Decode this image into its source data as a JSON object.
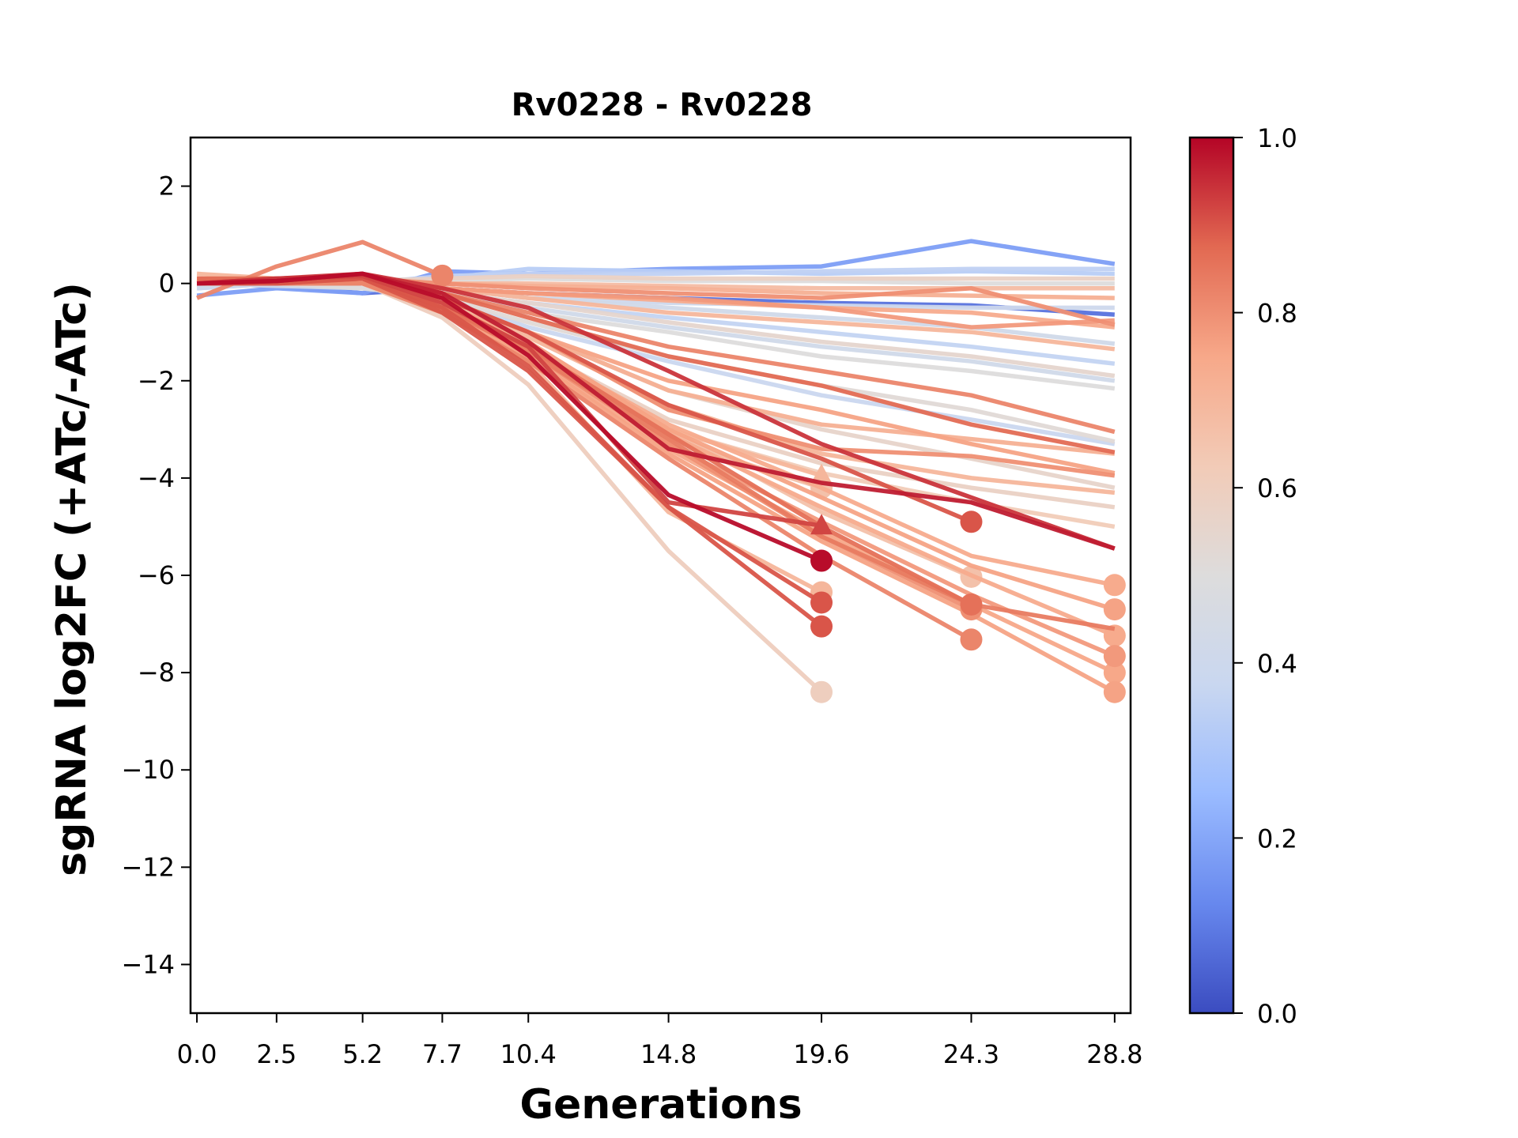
{
  "chart_data": {
    "type": "line",
    "title": "Rv0228 - Rv0228",
    "xlabel": "Generations",
    "ylabel": "sgRNA log2FC (+ATc/-ATc)",
    "x": [
      0.0,
      2.5,
      5.2,
      7.7,
      10.4,
      14.8,
      19.6,
      24.3,
      28.8
    ],
    "x_tick_labels": [
      "0.0",
      "2.5",
      "5.2",
      "7.7",
      "10.4",
      "14.8",
      "19.6",
      "24.3",
      "28.8"
    ],
    "xlim": [
      -0.2,
      29.3
    ],
    "ylim": [
      -15,
      3
    ],
    "y_ticks": [
      2,
      0,
      -2,
      -4,
      -6,
      -8,
      -10,
      -12,
      -14
    ],
    "y_tick_labels": [
      "2",
      "0",
      "−2",
      "−4",
      "−6",
      "−8",
      "−10",
      "−12",
      "−14"
    ],
    "grid": false,
    "colormap": "coolwarm",
    "colorbar": {
      "range": [
        0.0,
        1.0
      ],
      "ticks": [
        0.0,
        0.2,
        0.4,
        0.6,
        0.8,
        1.0
      ],
      "tick_labels": [
        "0.0",
        "0.2",
        "0.4",
        "0.6",
        "0.8",
        "1.0"
      ],
      "stops": [
        "#3b4cc0",
        "#6788ee",
        "#9abbff",
        "#c9d7f0",
        "#dddcdc",
        "#f2cbb7",
        "#f7a889",
        "#e26952",
        "#b40426"
      ]
    },
    "series": [
      {
        "color_value": 0.18,
        "values": [
          -0.25,
          -0.1,
          -0.2,
          0.25,
          0.2,
          0.3,
          0.35,
          0.87,
          0.4
        ]
      },
      {
        "color_value": 0.35,
        "values": [
          0.0,
          0.05,
          0.0,
          0.15,
          0.2,
          0.2,
          0.25,
          0.3,
          0.3
        ]
      },
      {
        "color_value": 0.33,
        "values": [
          -0.1,
          0.0,
          0.05,
          0.1,
          0.3,
          0.25,
          0.2,
          0.25,
          0.2
        ]
      },
      {
        "color_value": 0.58,
        "values": [
          0.05,
          0.0,
          0.05,
          0.1,
          0.15,
          0.1,
          0.1,
          0.1,
          0.1
        ]
      },
      {
        "color_value": 0.5,
        "values": [
          0.0,
          0.1,
          0.0,
          0.05,
          0.1,
          0.05,
          0.05,
          0.0,
          0.0
        ]
      },
      {
        "color_value": 0.68,
        "values": [
          0.1,
          0.0,
          0.0,
          0.0,
          0.0,
          -0.05,
          -0.1,
          -0.1,
          -0.1
        ]
      },
      {
        "color_value": 0.8,
        "values": [
          0.05,
          0.05,
          0.1,
          0.0,
          -0.1,
          -0.2,
          -0.3,
          -0.1,
          -0.85
        ]
      },
      {
        "color_value": 0.72,
        "values": [
          0.0,
          0.0,
          0.05,
          0.0,
          -0.05,
          -0.1,
          -0.2,
          -0.25,
          -0.3
        ]
      },
      {
        "color_value": 0.4,
        "values": [
          -0.1,
          0.0,
          -0.1,
          -0.1,
          -0.3,
          -0.4,
          -0.45,
          -0.5,
          -0.5
        ]
      },
      {
        "color_value": 0.08,
        "values": [
          0.0,
          -0.05,
          -0.2,
          -0.1,
          -0.2,
          -0.3,
          -0.4,
          -0.45,
          -0.64
        ]
      },
      {
        "color_value": 0.78,
        "values": [
          0.1,
          0.0,
          0.0,
          -0.1,
          -0.2,
          -0.3,
          -0.5,
          -0.9,
          -0.76
        ]
      },
      {
        "color_value": 0.74,
        "values": [
          0.0,
          0.1,
          0.1,
          -0.1,
          -0.2,
          -0.35,
          -0.5,
          -0.6,
          -0.9
        ]
      },
      {
        "color_value": 0.42,
        "values": [
          -0.05,
          0.0,
          0.0,
          -0.1,
          -0.3,
          -0.5,
          -0.7,
          -0.9,
          -1.24
        ]
      },
      {
        "color_value": 0.7,
        "values": [
          0.2,
          0.1,
          0.0,
          -0.1,
          -0.3,
          -0.6,
          -0.8,
          -1.0,
          -1.35
        ]
      },
      {
        "color_value": 0.36,
        "values": [
          0.0,
          0.0,
          -0.1,
          -0.2,
          -0.4,
          -0.7,
          -1.0,
          -1.3,
          -1.65
        ]
      },
      {
        "color_value": 0.55,
        "values": [
          0.1,
          0.05,
          0.0,
          -0.2,
          -0.4,
          -0.8,
          -1.2,
          -1.5,
          -1.9
        ]
      },
      {
        "color_value": 0.42,
        "values": [
          0.0,
          -0.05,
          -0.1,
          -0.2,
          -0.5,
          -0.9,
          -1.3,
          -1.6,
          -2.0
        ]
      },
      {
        "color_value": 0.5,
        "values": [
          0.05,
          0.0,
          -0.1,
          -0.3,
          -0.6,
          -1.0,
          -1.5,
          -1.8,
          -2.16
        ]
      },
      {
        "color_value": 0.82,
        "values": [
          0.0,
          0.05,
          0.1,
          -0.2,
          -0.6,
          -1.3,
          -1.8,
          -2.3,
          -3.05
        ]
      },
      {
        "color_value": 0.52,
        "values": [
          0.1,
          0.0,
          0.0,
          -0.3,
          -0.8,
          -1.5,
          -2.1,
          -2.6,
          -3.25
        ]
      },
      {
        "color_value": 0.38,
        "values": [
          0.0,
          0.0,
          -0.1,
          -0.3,
          -0.9,
          -1.6,
          -2.3,
          -2.8,
          -3.3
        ]
      },
      {
        "color_value": 0.87,
        "values": [
          0.1,
          0.1,
          0.15,
          -0.2,
          -0.7,
          -1.5,
          -2.1,
          -2.9,
          -3.47
        ]
      },
      {
        "color_value": 0.76,
        "values": [
          0.0,
          0.05,
          0.1,
          -0.3,
          -1.0,
          -2.0,
          -2.6,
          -3.3,
          -3.9
        ]
      },
      {
        "color_value": 0.56,
        "values": [
          0.05,
          0.0,
          0.0,
          -0.4,
          -1.0,
          -2.2,
          -3.0,
          -3.6,
          -4.2
        ]
      },
      {
        "color_value": 0.7,
        "values": [
          0.0,
          0.0,
          0.05,
          -0.4,
          -1.1,
          -2.5,
          -3.5,
          -4.0,
          -4.3
        ]
      },
      {
        "color_value": 0.58,
        "values": [
          0.1,
          0.05,
          0.0,
          -0.5,
          -1.3,
          -2.8,
          -3.7,
          -4.2,
          -4.6
        ]
      },
      {
        "color_value": 0.94,
        "values": [
          0.0,
          0.1,
          0.2,
          -0.1,
          -0.5,
          -1.8,
          -3.3,
          -4.4,
          -5.45
        ]
      },
      {
        "color_value": 0.62,
        "values": [
          0.1,
          0.0,
          0.0,
          -0.5,
          -1.4,
          -3.0,
          -3.9,
          -4.5,
          -5.0
        ]
      },
      {
        "color_value": 0.74,
        "values": [
          0.0,
          0.0,
          0.0,
          -0.5,
          -1.3,
          -2.9,
          -4.2,
          -5.6,
          -6.2
        ],
        "end_marker": "o"
      },
      {
        "color_value": 0.76,
        "values": [
          0.05,
          0.05,
          0.05,
          -0.4,
          -1.2,
          -3.0,
          -4.4,
          -5.8,
          -6.7
        ],
        "end_marker": "o"
      },
      {
        "color_value": 0.74,
        "values": [
          0.0,
          0.05,
          0.1,
          -0.5,
          -1.3,
          -3.1,
          -4.6,
          -6.0,
          -7.24
        ],
        "end_marker": "o"
      },
      {
        "color_value": 0.78,
        "values": [
          0.1,
          0.0,
          0.0,
          -0.5,
          -1.4,
          -3.3,
          -4.9,
          -6.4,
          -7.66
        ],
        "end_marker": "o"
      },
      {
        "color_value": 0.75,
        "values": [
          0.0,
          0.0,
          0.0,
          -0.6,
          -1.5,
          -3.4,
          -5.1,
          -6.6,
          -8.0
        ],
        "end_marker": "o"
      },
      {
        "color_value": 0.76,
        "values": [
          0.05,
          0.0,
          0.05,
          -0.6,
          -1.5,
          -3.5,
          -5.3,
          -6.8,
          -8.4
        ],
        "end_marker": "o"
      },
      {
        "color_value": 0.84,
        "values": [
          0.0,
          0.05,
          0.1,
          -0.5,
          -1.4,
          -3.2,
          -5.2,
          -6.6,
          -7.1
        ]
      },
      {
        "color_value": 0.9,
        "values": [
          0.0,
          0.05,
          0.15,
          -0.3,
          -1.0,
          -2.5,
          -3.6,
          -4.9
        ],
        "end_marker": "o"
      },
      {
        "color_value": 0.66,
        "values": [
          0.05,
          0.0,
          0.05,
          -0.4,
          -1.2,
          -3.0,
          -4.7,
          -6.03
        ],
        "end_marker": "o"
      },
      {
        "color_value": 0.86,
        "values": [
          0.0,
          0.0,
          0.1,
          -0.5,
          -1.3,
          -3.1,
          -5.0,
          -6.6
        ],
        "end_marker": "o"
      },
      {
        "color_value": 0.8,
        "values": [
          0.0,
          0.05,
          0.1,
          -0.5,
          -1.4,
          -3.3,
          -5.2,
          -6.7
        ],
        "end_marker": "o"
      },
      {
        "color_value": 0.82,
        "values": [
          0.05,
          0.0,
          0.0,
          -0.6,
          -1.6,
          -3.6,
          -5.6,
          -7.32
        ],
        "end_marker": "o"
      },
      {
        "color_value": 0.82,
        "values": [
          -0.3,
          0.35,
          0.85,
          0.16
        ],
        "end_marker": "o"
      },
      {
        "color_value": 0.7,
        "values": [
          0.0,
          0.0,
          0.0,
          -0.4,
          -1.3,
          -3.0,
          -3.95
        ],
        "end_marker": "^"
      },
      {
        "color_value": 0.66,
        "values": [
          0.05,
          0.05,
          0.05,
          -0.4,
          -1.4,
          -3.2,
          -4.2
        ],
        "end_marker": "o"
      },
      {
        "color_value": 0.92,
        "values": [
          0.0,
          0.1,
          0.15,
          -0.4,
          -1.3,
          -4.5,
          -4.98
        ],
        "end_marker": "^"
      },
      {
        "color_value": 0.99,
        "values": [
          0.0,
          0.05,
          0.2,
          -0.3,
          -1.48,
          -4.35,
          -5.7
        ],
        "end_marker": "o"
      },
      {
        "color_value": 0.7,
        "values": [
          0.05,
          0.0,
          0.1,
          -0.5,
          -1.6,
          -4.7,
          -6.35
        ],
        "end_marker": "o"
      },
      {
        "color_value": 0.9,
        "values": [
          0.0,
          0.05,
          0.1,
          -0.5,
          -1.7,
          -4.6,
          -6.56
        ],
        "end_marker": "o"
      },
      {
        "color_value": 0.9,
        "values": [
          0.0,
          0.0,
          0.1,
          -0.6,
          -1.8,
          -4.6,
          -7.05
        ],
        "end_marker": "o"
      },
      {
        "color_value": 0.6,
        "values": [
          0.0,
          0.0,
          0.0,
          -0.7,
          -2.08,
          -5.5,
          -8.4
        ],
        "end_marker": "o"
      },
      {
        "color_value": 0.97,
        "values": [
          0.0,
          0.05,
          0.2,
          -0.2,
          -1.2,
          -3.4,
          -4.1,
          -4.5,
          -5.45
        ]
      },
      {
        "color_value": 0.8,
        "values": [
          0.1,
          0.05,
          0.1,
          -0.3,
          -1.0,
          -2.6,
          -3.4,
          -3.55,
          -3.95
        ]
      },
      {
        "color_value": 0.72,
        "values": [
          0.0,
          0.0,
          0.0,
          -0.3,
          -1.0,
          -2.2,
          -2.9,
          -3.2,
          -3.5
        ]
      }
    ]
  }
}
